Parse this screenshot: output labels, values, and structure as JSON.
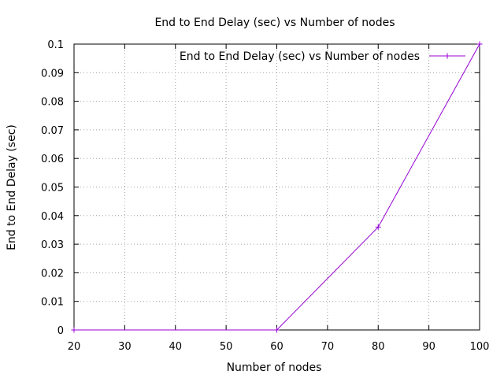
{
  "chart_data": {
    "type": "line",
    "title": "End to End Delay (sec) vs Number of nodes",
    "xlabel": "Number of nodes",
    "ylabel": "End to End Delay (sec)",
    "xlim": [
      20,
      100
    ],
    "ylim": [
      0,
      0.1
    ],
    "x_ticks": [
      "20",
      "30",
      "40",
      "50",
      "60",
      "70",
      "80",
      "90",
      "100"
    ],
    "y_ticks": [
      "0",
      "0.01",
      "0.02",
      "0.03",
      "0.04",
      "0.05",
      "0.06",
      "0.07",
      "0.08",
      "0.09",
      "0.1"
    ],
    "grid": true,
    "legend_position": "top-right",
    "series": [
      {
        "name": "End to End Delay (sec) vs Number of nodes",
        "color": "#9400d3",
        "marker": "plus",
        "x": [
          20,
          60,
          80,
          100
        ],
        "y": [
          0,
          0,
          0.036,
          0.1
        ]
      }
    ]
  }
}
